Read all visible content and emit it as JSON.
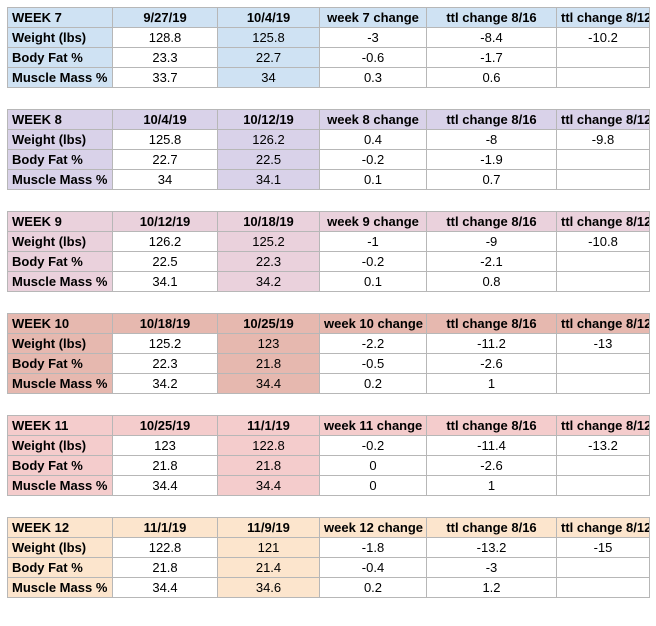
{
  "weeks": [
    {
      "color": "#cfe2f3",
      "header": [
        "WEEK 7",
        "9/27/19",
        "10/4/19",
        "week 7 change",
        "ttl change 8/16",
        "ttl change 8/12"
      ],
      "rows": [
        [
          "Weight (lbs)",
          "128.8",
          "125.8",
          "-3",
          "-8.4",
          "-10.2"
        ],
        [
          "Body Fat %",
          "23.3",
          "22.7",
          "-0.6",
          "-1.7",
          ""
        ],
        [
          "Muscle Mass %",
          "33.7",
          "34",
          "0.3",
          "0.6",
          ""
        ]
      ]
    },
    {
      "color": "#d9d2e9",
      "header": [
        "WEEK 8",
        "10/4/19",
        "10/12/19",
        "week 8 change",
        "ttl change 8/16",
        "ttl change 8/12"
      ],
      "rows": [
        [
          "Weight (lbs)",
          "125.8",
          "126.2",
          "0.4",
          "-8",
          "-9.8"
        ],
        [
          "Body Fat %",
          "22.7",
          "22.5",
          "-0.2",
          "-1.9",
          ""
        ],
        [
          "Muscle Mass %",
          "34",
          "34.1",
          "0.1",
          "0.7",
          ""
        ]
      ]
    },
    {
      "color": "#ead1dc",
      "header": [
        "WEEK 9",
        "10/12/19",
        "10/18/19",
        "week 9 change",
        "ttl change 8/16",
        "ttl change 8/12"
      ],
      "rows": [
        [
          "Weight (lbs)",
          "126.2",
          "125.2",
          "-1",
          "-9",
          "-10.8"
        ],
        [
          "Body Fat %",
          "22.5",
          "22.3",
          "-0.2",
          "-2.1",
          ""
        ],
        [
          "Muscle Mass %",
          "34.1",
          "34.2",
          "0.1",
          "0.8",
          ""
        ]
      ]
    },
    {
      "color": "#e6b8af",
      "header": [
        "WEEK 10",
        "10/18/19",
        "10/25/19",
        "week 10 change",
        "ttl change 8/16",
        "ttl change 8/12"
      ],
      "rows": [
        [
          "Weight (lbs)",
          "125.2",
          "123",
          "-2.2",
          "-11.2",
          "-13"
        ],
        [
          "Body Fat %",
          "22.3",
          "21.8",
          "-0.5",
          "-2.6",
          ""
        ],
        [
          "Muscle Mass %",
          "34.2",
          "34.4",
          "0.2",
          "1",
          ""
        ]
      ]
    },
    {
      "color": "#f4cccc",
      "header": [
        "WEEK 11",
        "10/25/19",
        "11/1/19",
        "week 11 change",
        "ttl change 8/16",
        "ttl change 8/12"
      ],
      "rows": [
        [
          "Weight (lbs)",
          "123",
          "122.8",
          "-0.2",
          "-11.4",
          "-13.2"
        ],
        [
          "Body Fat %",
          "21.8",
          "21.8",
          "0",
          "-2.6",
          ""
        ],
        [
          "Muscle Mass %",
          "34.4",
          "34.4",
          "0",
          "1",
          ""
        ]
      ]
    },
    {
      "color": "#fce5cd",
      "header": [
        "WEEK 12",
        "11/1/19",
        "11/9/19",
        "week 12 change",
        "ttl change 8/16",
        "ttl change 8/12"
      ],
      "rows": [
        [
          "Weight (lbs)",
          "122.8",
          "121",
          "-1.8",
          "-13.2",
          "-15"
        ],
        [
          "Body Fat %",
          "21.8",
          "21.4",
          "-0.4",
          "-3",
          ""
        ],
        [
          "Muscle Mass %",
          "34.4",
          "34.6",
          "0.2",
          "1.2",
          ""
        ]
      ]
    }
  ]
}
